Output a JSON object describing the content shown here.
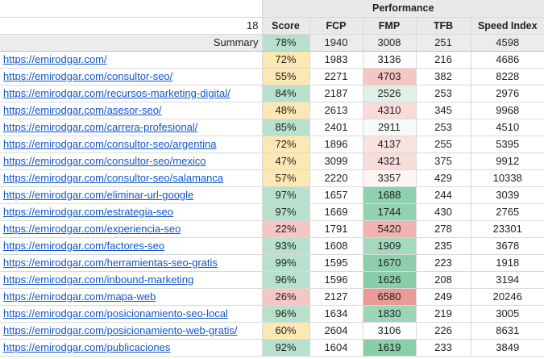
{
  "header": {
    "group_label": "Performance",
    "row_count": "18",
    "columns": [
      "Score",
      "FCP",
      "FMP",
      "TFB",
      "Speed Index"
    ]
  },
  "summary": {
    "label": "Summary",
    "score": "78%",
    "fcp": "1940",
    "fmp": "3008",
    "tfb": "251",
    "speed_index": "4598",
    "score_color": "#b7e1cd"
  },
  "rows": [
    {
      "url": "https://emirodgar.com/",
      "score": "72%",
      "fcp": "1983",
      "fmp": "3136",
      "tfb": "216",
      "si": "4686",
      "score_color": "#fce8b2",
      "fmp_color": "#fdfcfc"
    },
    {
      "url": "https://emirodgar.com/consultor-seo/",
      "score": "55%",
      "fcp": "2271",
      "fmp": "4703",
      "tfb": "382",
      "si": "8228",
      "score_color": "#fce8b2",
      "fmp_color": "#f4c7c3"
    },
    {
      "url": "https://emirodgar.com/recursos-marketing-digital/",
      "score": "84%",
      "fcp": "2187",
      "fmp": "2526",
      "tfb": "253",
      "si": "2976",
      "score_color": "#b7e1cd",
      "fmp_color": "#dff1e7"
    },
    {
      "url": "https://emirodgar.com/asesor-seo/",
      "score": "48%",
      "fcp": "2613",
      "fmp": "4310",
      "tfb": "345",
      "si": "9968",
      "score_color": "#fce8b2",
      "fmp_color": "#f8dcda"
    },
    {
      "url": "https://emirodgar.com/carrera-profesional/",
      "score": "85%",
      "fcp": "2401",
      "fmp": "2911",
      "tfb": "253",
      "si": "4510",
      "score_color": "#b7e1cd",
      "fmp_color": "#f6fbf8"
    },
    {
      "url": "https://emirodgar.com/consultor-seo/argentina",
      "score": "72%",
      "fcp": "1896",
      "fmp": "4137",
      "tfb": "255",
      "si": "5395",
      "score_color": "#fce8b2",
      "fmp_color": "#f9e3e1"
    },
    {
      "url": "https://emirodgar.com/consultor-seo/mexico",
      "score": "47%",
      "fcp": "3099",
      "fmp": "4321",
      "tfb": "375",
      "si": "9912",
      "score_color": "#fce8b2",
      "fmp_color": "#f8dcda"
    },
    {
      "url": "https://emirodgar.com/consultor-seo/salamanca",
      "score": "57%",
      "fcp": "2220",
      "fmp": "3357",
      "tfb": "429",
      "si": "10338",
      "score_color": "#fce8b2",
      "fmp_color": "#fdf5f4"
    },
    {
      "url": "https://emirodgar.com/eliminar-url-google",
      "score": "97%",
      "fcp": "1657",
      "fmp": "1688",
      "tfb": "244",
      "si": "3039",
      "score_color": "#b7e1cd",
      "fmp_color": "#8fd0ae"
    },
    {
      "url": "https://emirodgar.com/estrategia-seo",
      "score": "97%",
      "fcp": "1669",
      "fmp": "1744",
      "tfb": "430",
      "si": "2765",
      "score_color": "#b7e1cd",
      "fmp_color": "#93d2b1"
    },
    {
      "url": "https://emirodgar.com/experiencia-seo",
      "score": "22%",
      "fcp": "1791",
      "fmp": "5420",
      "tfb": "278",
      "si": "23301",
      "score_color": "#f4c7c3",
      "fmp_color": "#f0b4b0"
    },
    {
      "url": "https://emirodgar.com/factores-seo",
      "score": "93%",
      "fcp": "1608",
      "fmp": "1909",
      "tfb": "235",
      "si": "3678",
      "score_color": "#b7e1cd",
      "fmp_color": "#a3d9bc"
    },
    {
      "url": "https://emirodgar.com/herramientas-seo-gratis",
      "score": "99%",
      "fcp": "1595",
      "fmp": "1670",
      "tfb": "223",
      "si": "1918",
      "score_color": "#b7e1cd",
      "fmp_color": "#8dcfad"
    },
    {
      "url": "https://emirodgar.com/inbound-marketing",
      "score": "96%",
      "fcp": "1596",
      "fmp": "1626",
      "tfb": "208",
      "si": "3194",
      "score_color": "#b7e1cd",
      "fmp_color": "#8acea9"
    },
    {
      "url": "https://emirodgar.com/mapa-web",
      "score": "26%",
      "fcp": "2127",
      "fmp": "6580",
      "tfb": "249",
      "si": "20246",
      "score_color": "#f4c7c3",
      "fmp_color": "#e99a94"
    },
    {
      "url": "https://emirodgar.com/posicionamiento-seo-local",
      "score": "96%",
      "fcp": "1634",
      "fmp": "1830",
      "tfb": "219",
      "si": "3005",
      "score_color": "#b7e1cd",
      "fmp_color": "#9bd6b6"
    },
    {
      "url": "https://emirodgar.com/posicionamiento-web-gratis/",
      "score": "60%",
      "fcp": "2604",
      "fmp": "3106",
      "tfb": "226",
      "si": "8631",
      "score_color": "#fce8b2",
      "fmp_color": "#fefefe"
    },
    {
      "url": "https://emirodgar.com/publicaciones",
      "score": "92%",
      "fcp": "1604",
      "fmp": "1619",
      "tfb": "233",
      "si": "3849",
      "score_color": "#b7e1cd",
      "fmp_color": "#89cea9"
    }
  ]
}
